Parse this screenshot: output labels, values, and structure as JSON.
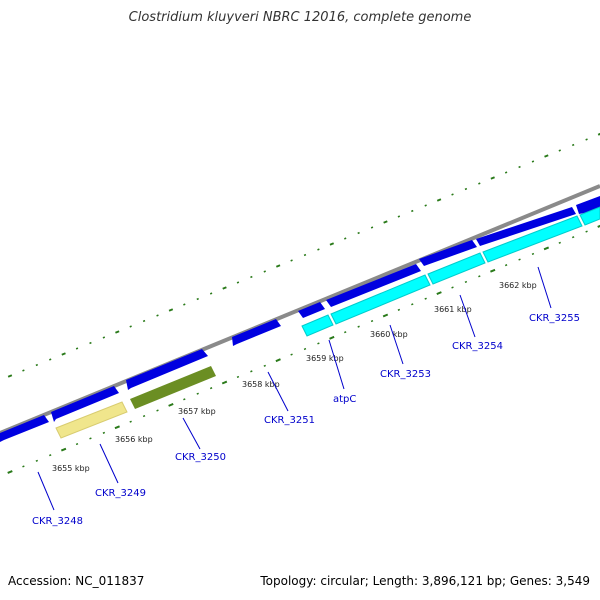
{
  "title": "Clostridium kluyveri NBRC 12016, complete genome",
  "footer": {
    "accession": "Accession: NC_011837",
    "summary": "Topology: circular; Length: 3,896,121 bp; Genes: 3,549"
  },
  "colors": {
    "backbone": "#8a8a8a",
    "gene_blue": "#0000e0",
    "gene_cyan": "#00ffff",
    "gene_yellow": "#f0e68c",
    "gene_olive": "#6b8e23",
    "tick_green": "#2a7a1a",
    "label_blue": "#0000cc"
  },
  "ticks": {
    "labels": [
      "3655 kbp",
      "3656 kbp",
      "3657 kbp",
      "3658 kbp",
      "3659 kbp",
      "3660 kbp",
      "3661 kbp",
      "3662 kbp"
    ]
  },
  "genes": {
    "labels": [
      "CKR_3248",
      "CKR_3249",
      "CKR_3250",
      "CKR_3251",
      "atpC",
      "CKR_3253",
      "CKR_3254",
      "CKR_3255"
    ]
  }
}
